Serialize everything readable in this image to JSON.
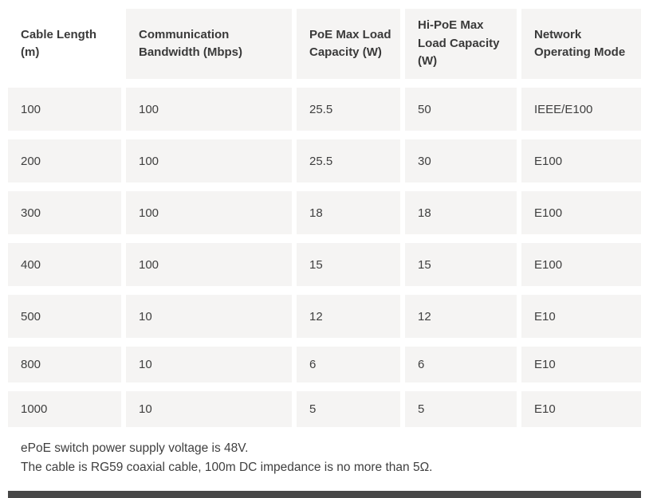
{
  "table": {
    "columns": [
      "Cable Length (m)",
      "Communication Bandwidth (Mbps)",
      "PoE Max Load Capacity (W)",
      "Hi-PoE Max Load Capacity (W)",
      "Network Operating Mode"
    ],
    "rows": [
      [
        "100",
        "100",
        "25.5",
        "50",
        "IEEE/E100"
      ],
      [
        "200",
        "100",
        "25.5",
        "30",
        "E100"
      ],
      [
        "300",
        "100",
        "18",
        "18",
        "E100"
      ],
      [
        "400",
        "100",
        "15",
        "15",
        "E100"
      ],
      [
        "500",
        "10",
        "12",
        "12",
        "E10"
      ],
      [
        "800",
        "10",
        "6",
        "6",
        "E10"
      ],
      [
        "1000",
        "10",
        "5",
        "5",
        "E10"
      ]
    ],
    "notes": [
      "ePoE switch power supply voltage is 48V.",
      "The cable is RG59 coaxial cable, 100m DC impedance is no more than 5Ω."
    ]
  },
  "colors": {
    "cell_background": "#f5f4f3",
    "text": "#3f3f3f",
    "bottom_bar": "#474747"
  }
}
